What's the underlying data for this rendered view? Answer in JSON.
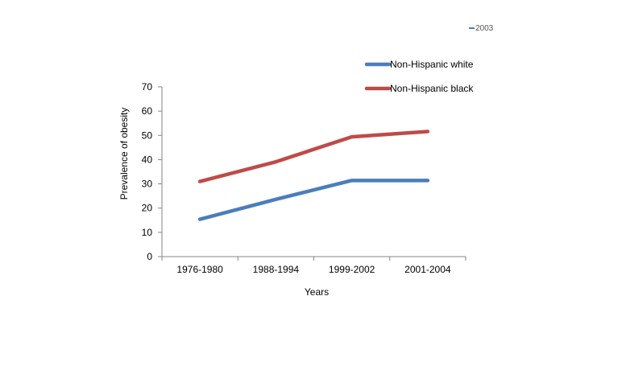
{
  "chart_data": {
    "type": "line",
    "categories": [
      "1976-1980",
      "1988-1994",
      "1999-2002",
      "2001-2004"
    ],
    "series": [
      {
        "name": "Non-Hispanic white",
        "values": [
          15.4,
          23.6,
          31.4,
          31.4
        ],
        "color": "#4a7ebb"
      },
      {
        "name": "Non-Hispanic black",
        "values": [
          31.0,
          39.1,
          49.4,
          51.6
        ],
        "color": "#be4b48"
      }
    ],
    "xlabel": "Years",
    "ylabel": "Prevalence  of obesity",
    "ylim": [
      0,
      70
    ],
    "yticks": [
      0,
      10,
      20,
      30,
      40,
      50,
      60,
      70
    ],
    "grid": false,
    "legend": "top-right",
    "stray_label": "2003"
  }
}
